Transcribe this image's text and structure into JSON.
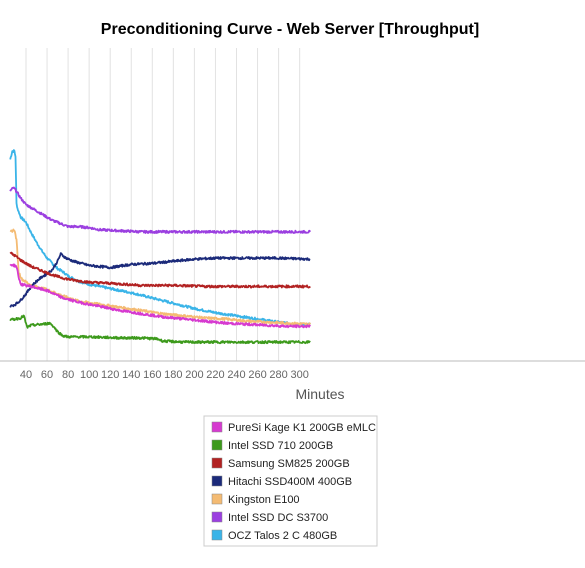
{
  "chart_data": {
    "type": "line",
    "title": "Preconditioning Curve - Web Server [Throughput]",
    "xlabel": "Minutes",
    "ylabel": "",
    "x_ticks": [
      40,
      60,
      80,
      100,
      120,
      140,
      160,
      180,
      200,
      220,
      240,
      260,
      280,
      300
    ],
    "xlim": [
      25,
      310
    ],
    "grid": "vertical",
    "legend_position": "bottom-center",
    "series": [
      {
        "name": "PureSi Kage K1 200GB eMLC",
        "color": "#d63ad0",
        "points": [
          [
            25,
            192
          ],
          [
            29,
            191
          ],
          [
            31,
            190
          ],
          [
            33,
            180
          ],
          [
            35,
            173
          ],
          [
            45,
            171
          ],
          [
            60,
            167
          ],
          [
            75,
            160
          ],
          [
            90,
            156
          ],
          [
            110,
            152
          ],
          [
            130,
            148
          ],
          [
            150,
            145
          ],
          [
            170,
            142
          ],
          [
            190,
            140
          ],
          [
            210,
            138
          ],
          [
            230,
            136
          ],
          [
            250,
            135
          ],
          [
            270,
            134
          ],
          [
            290,
            133
          ],
          [
            310,
            133
          ]
        ]
      },
      {
        "name": "Intel SSD 710 200GB",
        "color": "#3d9a1c",
        "points": [
          [
            25,
            139
          ],
          [
            30,
            140
          ],
          [
            35,
            141
          ],
          [
            38,
            143
          ],
          [
            41,
            132
          ],
          [
            45,
            134
          ],
          [
            55,
            135
          ],
          [
            63,
            136
          ],
          [
            66,
            133
          ],
          [
            70,
            128
          ],
          [
            75,
            124
          ],
          [
            80,
            123
          ],
          [
            100,
            123
          ],
          [
            130,
            122
          ],
          [
            150,
            122
          ],
          [
            165,
            121
          ],
          [
            170,
            119
          ],
          [
            190,
            118
          ],
          [
            220,
            118
          ],
          [
            250,
            118
          ],
          [
            280,
            118
          ],
          [
            310,
            118
          ]
        ]
      },
      {
        "name": "Samsung SM825 200GB",
        "color": "#b22222",
        "points": [
          [
            25,
            203
          ],
          [
            30,
            200
          ],
          [
            35,
            196
          ],
          [
            45,
            190
          ],
          [
            55,
            186
          ],
          [
            65,
            182
          ],
          [
            75,
            179
          ],
          [
            85,
            177
          ],
          [
            100,
            175
          ],
          [
            120,
            174
          ],
          [
            150,
            172
          ],
          [
            180,
            172
          ],
          [
            210,
            171
          ],
          [
            250,
            171
          ],
          [
            280,
            171
          ],
          [
            310,
            171
          ]
        ]
      },
      {
        "name": "Hitachi SSD400M 400GB",
        "color": "#1b2a7a",
        "points": [
          [
            25,
            152
          ],
          [
            30,
            154
          ],
          [
            35,
            158
          ],
          [
            40,
            164
          ],
          [
            45,
            171
          ],
          [
            50,
            176
          ],
          [
            55,
            180
          ],
          [
            60,
            183
          ],
          [
            65,
            187
          ],
          [
            70,
            195
          ],
          [
            73,
            202
          ],
          [
            78,
            198
          ],
          [
            85,
            195
          ],
          [
            100,
            191
          ],
          [
            120,
            189
          ],
          [
            140,
            192
          ],
          [
            160,
            193
          ],
          [
            180,
            195
          ],
          [
            200,
            197
          ],
          [
            220,
            198
          ],
          [
            250,
            198
          ],
          [
            280,
            198
          ],
          [
            310,
            197
          ]
        ]
      },
      {
        "name": "Kingston E100",
        "color": "#f4bb73",
        "points": [
          [
            25,
            223
          ],
          [
            29,
            225
          ],
          [
            31,
            215
          ],
          [
            33,
            185
          ],
          [
            36,
            178
          ],
          [
            45,
            172
          ],
          [
            60,
            168
          ],
          [
            75,
            162
          ],
          [
            90,
            157
          ],
          [
            110,
            154
          ],
          [
            130,
            151
          ],
          [
            150,
            148
          ],
          [
            170,
            145
          ],
          [
            190,
            143
          ],
          [
            210,
            141
          ],
          [
            230,
            140
          ],
          [
            250,
            138
          ],
          [
            270,
            137
          ],
          [
            290,
            136
          ],
          [
            310,
            135
          ]
        ]
      },
      {
        "name": "Intel SSD DC S3700",
        "color": "#9b3fe0",
        "points": [
          [
            25,
            262
          ],
          [
            28,
            265
          ],
          [
            30,
            263
          ],
          [
            35,
            255
          ],
          [
            40,
            249
          ],
          [
            45,
            246
          ],
          [
            50,
            243
          ],
          [
            55,
            240
          ],
          [
            60,
            237
          ],
          [
            65,
            234
          ],
          [
            70,
            232
          ],
          [
            75,
            230
          ],
          [
            80,
            228
          ],
          [
            90,
            228
          ],
          [
            100,
            227
          ],
          [
            110,
            225
          ],
          [
            130,
            224
          ],
          [
            150,
            223
          ],
          [
            170,
            223
          ],
          [
            190,
            223
          ],
          [
            220,
            223
          ],
          [
            250,
            223
          ],
          [
            280,
            223
          ],
          [
            310,
            223
          ]
        ]
      },
      {
        "name": "OCZ Talos 2 C 480GB",
        "color": "#3ab4e8",
        "points": [
          [
            25,
            292
          ],
          [
            27,
            300
          ],
          [
            29,
            300
          ],
          [
            30,
            295
          ],
          [
            31,
            250
          ],
          [
            32,
            245
          ],
          [
            35,
            237
          ],
          [
            40,
            232
          ],
          [
            45,
            222
          ],
          [
            50,
            213
          ],
          [
            55,
            205
          ],
          [
            60,
            198
          ],
          [
            65,
            193
          ],
          [
            70,
            188
          ],
          [
            75,
            185
          ],
          [
            80,
            181
          ],
          [
            90,
            176
          ],
          [
            100,
            173
          ],
          [
            110,
            171
          ],
          [
            120,
            169
          ],
          [
            130,
            167
          ],
          [
            140,
            165
          ],
          [
            160,
            160
          ],
          [
            180,
            155
          ],
          [
            200,
            150
          ],
          [
            220,
            146
          ],
          [
            240,
            143
          ],
          [
            260,
            140
          ],
          [
            280,
            137
          ],
          [
            300,
            135
          ],
          [
            310,
            135
          ]
        ]
      }
    ]
  }
}
